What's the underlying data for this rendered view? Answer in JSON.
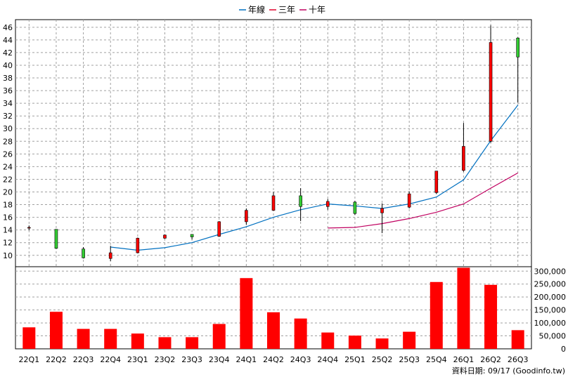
{
  "chart_data": {
    "type": "candlestick",
    "categories": [
      "22Q1",
      "22Q2",
      "22Q3",
      "22Q4",
      "23Q1",
      "23Q2",
      "23Q3",
      "23Q4",
      "24Q1",
      "24Q2",
      "24Q3",
      "24Q4",
      "25Q1",
      "25Q2",
      "25Q3",
      "25Q4",
      "26Q1",
      "26Q2",
      "26Q3"
    ],
    "price": {
      "ylim": [
        8.2,
        47.2
      ],
      "ticks": [
        10,
        12,
        14,
        16,
        18,
        20,
        22,
        24,
        26,
        28,
        30,
        32,
        34,
        36,
        38,
        40,
        42,
        44,
        46
      ],
      "candles": [
        {
          "open": 14.4,
          "close": 14.4,
          "high": 14.7,
          "low": 14.0
        },
        {
          "open": 14.1,
          "close": 11.1,
          "high": 14.1,
          "low": 11.0
        },
        {
          "open": 11.0,
          "close": 9.6,
          "high": 11.3,
          "low": 9.5
        },
        {
          "open": 9.5,
          "close": 10.4,
          "high": 11.5,
          "low": 9.1
        },
        {
          "open": 10.4,
          "close": 12.7,
          "high": 12.8,
          "low": 10.3
        },
        {
          "open": 12.7,
          "close": 13.2,
          "high": 13.3,
          "low": 12.6
        },
        {
          "open": 13.3,
          "close": 12.9,
          "high": 13.3,
          "low": 12.5
        },
        {
          "open": 13.0,
          "close": 15.3,
          "high": 15.4,
          "low": 12.9
        },
        {
          "open": 15.3,
          "close": 17.1,
          "high": 17.4,
          "low": 14.8
        },
        {
          "open": 17.1,
          "close": 19.4,
          "high": 20.0,
          "low": 17.0
        },
        {
          "open": 19.4,
          "close": 17.7,
          "high": 20.6,
          "low": 15.4
        },
        {
          "open": 17.7,
          "close": 18.5,
          "high": 18.9,
          "low": 17.2
        },
        {
          "open": 18.4,
          "close": 16.6,
          "high": 18.6,
          "low": 16.4
        },
        {
          "open": 16.7,
          "close": 17.4,
          "high": 18.2,
          "low": 13.5
        },
        {
          "open": 17.6,
          "close": 19.7,
          "high": 20.1,
          "low": 17.4
        },
        {
          "open": 19.9,
          "close": 23.3,
          "high": 23.3,
          "low": 19.7
        },
        {
          "open": 23.4,
          "close": 27.2,
          "high": 30.9,
          "low": 23.2
        },
        {
          "open": 28.0,
          "close": 43.6,
          "high": 46.3,
          "low": 27.8
        },
        {
          "open": 44.3,
          "close": 41.3,
          "high": 44.4,
          "low": 34.1
        }
      ],
      "series": [
        {
          "name": "年線",
          "color": "#0070c0",
          "start": 3,
          "values": [
            11.3,
            10.8,
            11.2,
            12.0,
            13.3,
            14.5,
            16.0,
            17.2,
            18.1,
            17.8,
            17.4,
            18.1,
            19.2,
            21.9,
            28.1,
            33.7
          ]
        },
        {
          "name": "三年",
          "color": "#e0002a",
          "start": 19,
          "values": []
        },
        {
          "name": "十年",
          "color": "#c00060",
          "start": 11,
          "values": [
            14.3,
            14.4,
            15.0,
            15.8,
            16.8,
            18.1,
            20.6,
            23.0
          ]
        }
      ],
      "up_color": "#ff0000",
      "down_color": "#33cc33"
    },
    "volume": {
      "ylim": [
        0,
        317000
      ],
      "tick_values": [
        0,
        50000,
        100000,
        150000,
        200000,
        250000,
        300000
      ],
      "tick_labels": [
        "0",
        "50,000",
        "100,000",
        "150,000",
        "200,000",
        "250,000",
        "300,000"
      ],
      "values": [
        83000,
        143000,
        77000,
        77000,
        59000,
        45000,
        45000,
        96000,
        273000,
        141000,
        117000,
        63000,
        51000,
        40000,
        66000,
        258000,
        313000,
        247000,
        72000
      ],
      "color": "#ff0000"
    },
    "grid": true
  },
  "legend": {
    "items": [
      {
        "label": "年線",
        "color": "#0070c0"
      },
      {
        "label": "三年",
        "color": "#e0002a"
      },
      {
        "label": "十年",
        "color": "#c00060"
      }
    ]
  },
  "footer": {
    "source": "資料日期: 09/17  (Goodinfo.tw)"
  }
}
